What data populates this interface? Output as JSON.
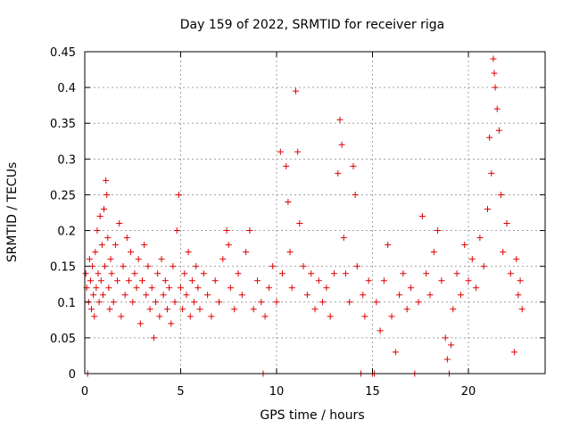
{
  "chart_data": {
    "type": "scatter",
    "title": "Day 159 of 2022, SRMTID for receiver riga",
    "xlabel": "GPS time / hours",
    "ylabel": "SRMTID / TECUs",
    "xlim": [
      0,
      24
    ],
    "ylim": [
      0,
      0.45
    ],
    "xticks": [
      0,
      5,
      10,
      15,
      20
    ],
    "xtick_labels": [
      "0",
      "5",
      "10",
      "15",
      "20"
    ],
    "yticks": [
      0,
      0.05,
      0.1,
      0.15,
      0.2,
      0.25,
      0.3,
      0.35,
      0.4,
      0.45
    ],
    "ytick_labels": [
      "0",
      "0.05",
      "0.1",
      "0.15",
      "0.2",
      "0.25",
      "0.3",
      "0.35",
      "0.4",
      "0.45"
    ],
    "grid": true,
    "marker": "+",
    "color": "#e00000",
    "series": [
      {
        "name": "SRMTID",
        "points": [
          [
            0.05,
            0.14
          ],
          [
            0.1,
            0.12
          ],
          [
            0.15,
            0.0
          ],
          [
            0.2,
            0.1
          ],
          [
            0.25,
            0.16
          ],
          [
            0.3,
            0.13
          ],
          [
            0.35,
            0.09
          ],
          [
            0.4,
            0.15
          ],
          [
            0.45,
            0.11
          ],
          [
            0.5,
            0.08
          ],
          [
            0.55,
            0.17
          ],
          [
            0.6,
            0.12
          ],
          [
            0.65,
            0.2
          ],
          [
            0.7,
            0.14
          ],
          [
            0.75,
            0.1
          ],
          [
            0.8,
            0.22
          ],
          [
            0.85,
            0.13
          ],
          [
            0.9,
            0.18
          ],
          [
            0.95,
            0.11
          ],
          [
            1.0,
            0.23
          ],
          [
            1.05,
            0.15
          ],
          [
            1.1,
            0.27
          ],
          [
            1.15,
            0.25
          ],
          [
            1.2,
            0.19
          ],
          [
            1.25,
            0.12
          ],
          [
            1.3,
            0.09
          ],
          [
            1.35,
            0.16
          ],
          [
            1.4,
            0.14
          ],
          [
            1.5,
            0.1
          ],
          [
            1.6,
            0.18
          ],
          [
            1.7,
            0.13
          ],
          [
            1.8,
            0.21
          ],
          [
            1.9,
            0.08
          ],
          [
            2.0,
            0.15
          ],
          [
            2.1,
            0.11
          ],
          [
            2.2,
            0.19
          ],
          [
            2.3,
            0.13
          ],
          [
            2.4,
            0.17
          ],
          [
            2.5,
            0.1
          ],
          [
            2.6,
            0.14
          ],
          [
            2.7,
            0.12
          ],
          [
            2.8,
            0.16
          ],
          [
            2.9,
            0.07
          ],
          [
            3.0,
            0.13
          ],
          [
            3.1,
            0.18
          ],
          [
            3.2,
            0.11
          ],
          [
            3.3,
            0.15
          ],
          [
            3.4,
            0.09
          ],
          [
            3.5,
            0.12
          ],
          [
            3.6,
            0.05
          ],
          [
            3.7,
            0.1
          ],
          [
            3.8,
            0.14
          ],
          [
            3.9,
            0.08
          ],
          [
            4.0,
            0.16
          ],
          [
            4.1,
            0.11
          ],
          [
            4.2,
            0.13
          ],
          [
            4.3,
            0.09
          ],
          [
            4.4,
            0.12
          ],
          [
            4.5,
            0.07
          ],
          [
            4.6,
            0.15
          ],
          [
            4.7,
            0.1
          ],
          [
            4.8,
            0.2
          ],
          [
            4.9,
            0.25
          ],
          [
            5.0,
            0.12
          ],
          [
            5.1,
            0.09
          ],
          [
            5.2,
            0.14
          ],
          [
            5.3,
            0.11
          ],
          [
            5.4,
            0.17
          ],
          [
            5.5,
            0.08
          ],
          [
            5.6,
            0.13
          ],
          [
            5.7,
            0.1
          ],
          [
            5.8,
            0.15
          ],
          [
            5.9,
            0.12
          ],
          [
            6.0,
            0.09
          ],
          [
            6.2,
            0.14
          ],
          [
            6.4,
            0.11
          ],
          [
            6.6,
            0.08
          ],
          [
            6.8,
            0.13
          ],
          [
            7.0,
            0.1
          ],
          [
            7.2,
            0.16
          ],
          [
            7.4,
            0.2
          ],
          [
            7.5,
            0.18
          ],
          [
            7.6,
            0.12
          ],
          [
            7.8,
            0.09
          ],
          [
            8.0,
            0.14
          ],
          [
            8.2,
            0.11
          ],
          [
            8.4,
            0.17
          ],
          [
            8.6,
            0.2
          ],
          [
            8.8,
            0.09
          ],
          [
            9.0,
            0.13
          ],
          [
            9.2,
            0.1
          ],
          [
            9.3,
            0.0
          ],
          [
            9.4,
            0.08
          ],
          [
            9.6,
            0.12
          ],
          [
            9.8,
            0.15
          ],
          [
            10.0,
            0.1
          ],
          [
            10.2,
            0.31
          ],
          [
            10.3,
            0.14
          ],
          [
            10.5,
            0.29
          ],
          [
            10.6,
            0.24
          ],
          [
            10.7,
            0.17
          ],
          [
            10.8,
            0.12
          ],
          [
            11.0,
            0.395
          ],
          [
            11.1,
            0.31
          ],
          [
            11.2,
            0.21
          ],
          [
            11.4,
            0.15
          ],
          [
            11.6,
            0.11
          ],
          [
            11.8,
            0.14
          ],
          [
            12.0,
            0.09
          ],
          [
            12.2,
            0.13
          ],
          [
            12.4,
            0.1
          ],
          [
            12.6,
            0.12
          ],
          [
            12.8,
            0.08
          ],
          [
            13.0,
            0.14
          ],
          [
            13.2,
            0.28
          ],
          [
            13.3,
            0.355
          ],
          [
            13.4,
            0.32
          ],
          [
            13.5,
            0.19
          ],
          [
            13.6,
            0.14
          ],
          [
            13.8,
            0.1
          ],
          [
            14.0,
            0.29
          ],
          [
            14.1,
            0.25
          ],
          [
            14.2,
            0.15
          ],
          [
            14.4,
            0.0
          ],
          [
            14.5,
            0.11
          ],
          [
            14.6,
            0.08
          ],
          [
            14.8,
            0.13
          ],
          [
            15.0,
            0.0
          ],
          [
            15.1,
            0.0
          ],
          [
            15.2,
            0.1
          ],
          [
            15.4,
            0.06
          ],
          [
            15.6,
            0.13
          ],
          [
            15.8,
            0.18
          ],
          [
            16.0,
            0.08
          ],
          [
            16.2,
            0.03
          ],
          [
            16.4,
            0.11
          ],
          [
            16.6,
            0.14
          ],
          [
            16.8,
            0.09
          ],
          [
            17.0,
            0.12
          ],
          [
            17.2,
            0.0
          ],
          [
            17.4,
            0.1
          ],
          [
            17.6,
            0.22
          ],
          [
            17.8,
            0.14
          ],
          [
            18.0,
            0.11
          ],
          [
            18.2,
            0.17
          ],
          [
            18.4,
            0.2
          ],
          [
            18.6,
            0.13
          ],
          [
            18.8,
            0.05
          ],
          [
            18.9,
            0.02
          ],
          [
            19.0,
            0.0
          ],
          [
            19.1,
            0.04
          ],
          [
            19.2,
            0.09
          ],
          [
            19.4,
            0.14
          ],
          [
            19.6,
            0.11
          ],
          [
            19.8,
            0.18
          ],
          [
            20.0,
            0.13
          ],
          [
            20.2,
            0.16
          ],
          [
            20.4,
            0.12
          ],
          [
            20.6,
            0.19
          ],
          [
            20.8,
            0.15
          ],
          [
            21.0,
            0.23
          ],
          [
            21.1,
            0.33
          ],
          [
            21.2,
            0.28
          ],
          [
            21.3,
            0.44
          ],
          [
            21.35,
            0.42
          ],
          [
            21.4,
            0.4
          ],
          [
            21.5,
            0.37
          ],
          [
            21.6,
            0.34
          ],
          [
            21.7,
            0.25
          ],
          [
            21.8,
            0.17
          ],
          [
            22.0,
            0.21
          ],
          [
            22.2,
            0.14
          ],
          [
            22.4,
            0.03
          ],
          [
            22.5,
            0.16
          ],
          [
            22.6,
            0.11
          ],
          [
            22.7,
            0.13
          ],
          [
            22.8,
            0.09
          ]
        ]
      }
    ]
  }
}
